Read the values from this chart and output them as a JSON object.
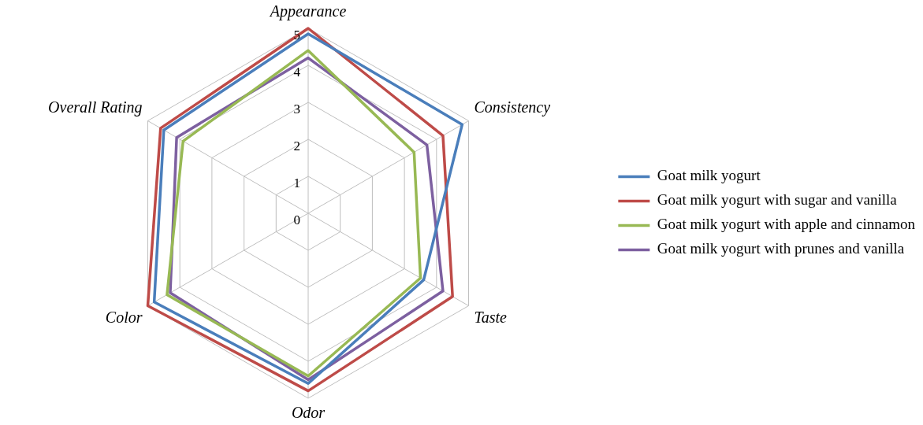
{
  "chart_data": {
    "type": "radar",
    "categories": [
      "Appearance",
      "Consistency",
      "Taste",
      "Odor",
      "Color",
      "Overall Rating"
    ],
    "series": [
      {
        "name": "Goat milk yogurt",
        "color": "#4a7ebb",
        "values": [
          4.85,
          4.8,
          3.6,
          4.6,
          4.8,
          4.5
        ]
      },
      {
        "name": "Goat milk yogurt with sugar and vanilla",
        "color": "#be4b48",
        "values": [
          5,
          4.2,
          4.5,
          4.8,
          5,
          4.6
        ]
      },
      {
        "name": "Goat milk yogurt with apple and cinnamon",
        "color": "#98b954",
        "values": [
          4.4,
          3.3,
          3.5,
          4.4,
          4.4,
          3.9
        ]
      },
      {
        "name": "Goat milk yogurt with prunes and vanilla",
        "color": "#7d60a0",
        "values": [
          4.2,
          3.7,
          4.2,
          4.5,
          4.3,
          4.1
        ]
      }
    ],
    "ylim": [
      0,
      5
    ],
    "yticks": [
      0,
      1,
      2,
      3,
      4,
      5
    ],
    "grid": true,
    "legend": "right",
    "marker": "none"
  }
}
